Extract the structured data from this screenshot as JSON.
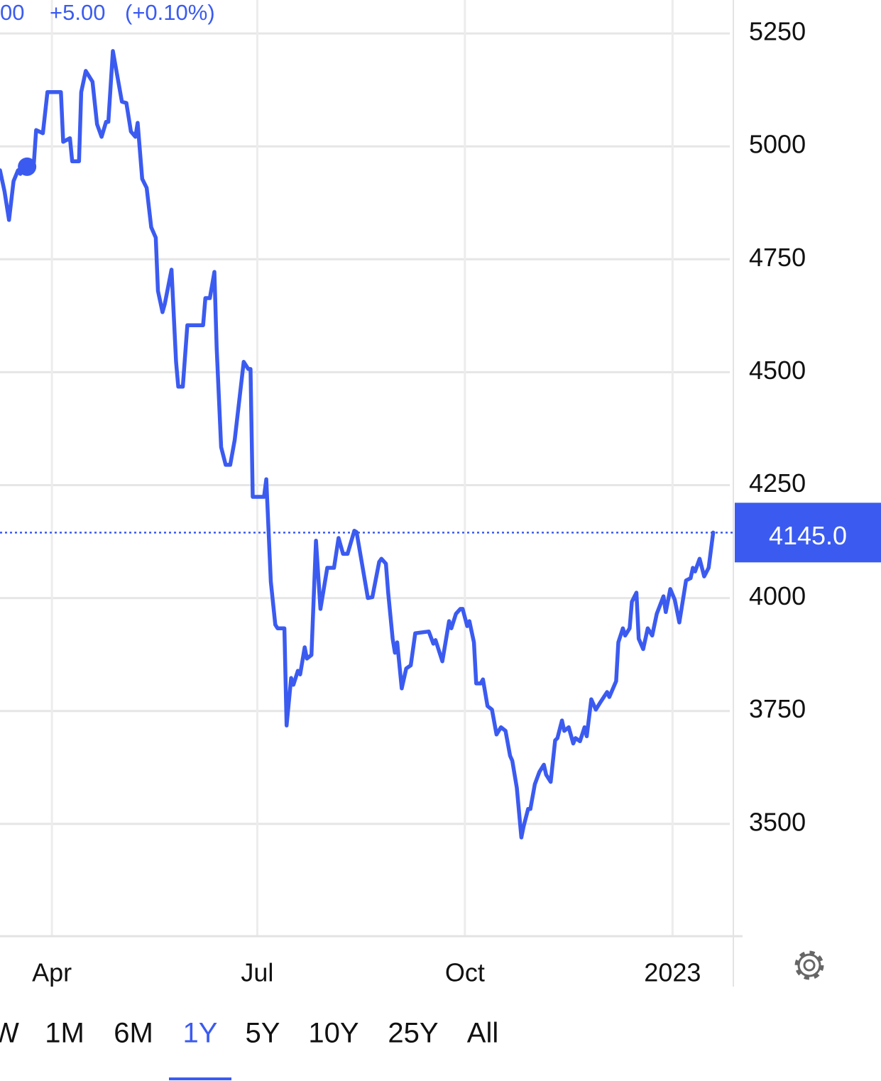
{
  "chart_data": {
    "type": "line",
    "header": {
      "price_fragment": "00",
      "change": "+5.00",
      "change_percent": "(+0.10%)"
    },
    "x": [
      68,
      70,
      72,
      74,
      76,
      77,
      80,
      83,
      84,
      87,
      89,
      95,
      96,
      99,
      100,
      103,
      104,
      106,
      109,
      111,
      113,
      115,
      116,
      118,
      122,
      124,
      126,
      128,
      129,
      131,
      133,
      135,
      137,
      138,
      140,
      141,
      144,
      146,
      147,
      149,
      151,
      158,
      159,
      161,
      163,
      164,
      166,
      168,
      170,
      172,
      176,
      178,
      179,
      180,
      185,
      186,
      188,
      190,
      191,
      194,
      195,
      197,
      198,
      200,
      201,
      203,
      204,
      206,
      208,
      210,
      213,
      216,
      218,
      220,
      222,
      225,
      226,
      231,
      233,
      236,
      237,
      239,
      240,
      242,
      243,
      244,
      246,
      248,
      250,
      252,
      258,
      260,
      261,
      264,
      267,
      268,
      270,
      272,
      273,
      275,
      276,
      278,
      279,
      281,
      282,
      284,
      286,
      288,
      290,
      292,
      294,
      295,
      297,
      299,
      300,
      302,
      303,
      305,
      307,
      309,
      310,
      312,
      314,
      315,
      317,
      318,
      320,
      322,
      323,
      325,
      327,
      328,
      330,
      332,
      334,
      337,
      338,
      341,
      342,
      344,
      345,
      347,
      348,
      350,
      351,
      353,
      355,
      357,
      359,
      362,
      363,
      365,
      367,
      369,
      372,
      374,
      375,
      376,
      378,
      380,
      382,
      384
    ],
    "series": [
      {
        "color": "#3b5bf0",
        "values": [
          4947,
          4900,
          4837,
          4923,
          4947,
          4939,
          4955,
          4963,
          5036,
          5029,
          5120,
          5120,
          5010,
          5018,
          4967,
          4967,
          5120,
          5167,
          5143,
          5049,
          5021,
          5054,
          5054,
          5211,
          5099,
          5096,
          5033,
          5021,
          5052,
          4928,
          4908,
          4821,
          4798,
          4680,
          4633,
          4651,
          4727,
          4523,
          4468,
          4468,
          4604,
          4604,
          4664,
          4664,
          4722,
          4554,
          4334,
          4295,
          4295,
          4350,
          4523,
          4507,
          4507,
          4224,
          4224,
          4263,
          4036,
          3941,
          3933,
          3933,
          3718,
          3823,
          3808,
          3839,
          3831,
          3891,
          3866,
          3874,
          4127,
          3976,
          4067,
          4067,
          4133,
          4098,
          4098,
          4149,
          4146,
          4000,
          4002,
          4080,
          4087,
          4076,
          4012,
          3910,
          3879,
          3902,
          3800,
          3844,
          3851,
          3922,
          3926,
          3899,
          3907,
          3860,
          3949,
          3933,
          3965,
          3976,
          3976,
          3938,
          3949,
          3902,
          3811,
          3811,
          3820,
          3761,
          3753,
          3698,
          3714,
          3706,
          3651,
          3640,
          3580,
          3470,
          3494,
          3533,
          3533,
          3588,
          3615,
          3631,
          3609,
          3593,
          3685,
          3690,
          3729,
          3706,
          3714,
          3678,
          3690,
          3683,
          3714,
          3694,
          3776,
          3753,
          3769,
          3792,
          3781,
          3816,
          3902,
          3933,
          3917,
          3933,
          3992,
          4012,
          3910,
          3887,
          3933,
          3917,
          3965,
          4004,
          3969,
          4020,
          3996,
          3946,
          4039,
          4044,
          4067,
          4059,
          4087,
          4048,
          4067,
          4145
        ]
      }
    ],
    "marker": {
      "x": 80,
      "value": 4955
    },
    "current_price": {
      "value": 4145,
      "label": "4145.0"
    },
    "xlim": [
      68,
      392
    ],
    "ylim": [
      3253,
      5324
    ],
    "xticks": [
      {
        "value": 91,
        "label": "Apr"
      },
      {
        "value": 182,
        "label": "Jul"
      },
      {
        "value": 274,
        "label": "Oct"
      },
      {
        "value": 366,
        "label": "2023"
      }
    ],
    "yticks": [
      3500,
      3750,
      4000,
      4250,
      4500,
      4750,
      5000,
      5250
    ],
    "grid": true,
    "ranges": [
      "W",
      "1M",
      "6M",
      "1Y",
      "5Y",
      "10Y",
      "25Y",
      "All"
    ],
    "selected_range": "1Y"
  }
}
